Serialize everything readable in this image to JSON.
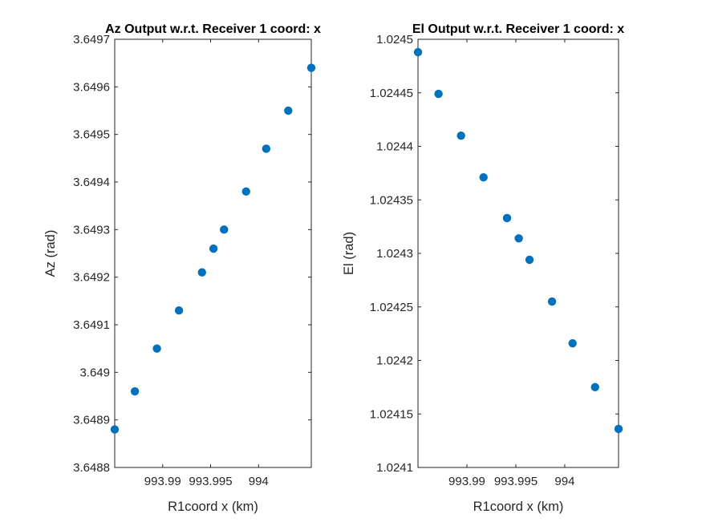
{
  "chart_data": [
    {
      "type": "scatter",
      "title": "Az Output w.r.t. Receiver 1 coord: x",
      "xlabel": "R1coord x (km)",
      "ylabel": "Az (rad)",
      "xlim": [
        993.985,
        994.0055
      ],
      "ylim": [
        3.6488,
        3.6497
      ],
      "x_ticks": [
        993.99,
        993.995,
        994
      ],
      "x_tick_labels": [
        "993.99",
        "993.995",
        "994"
      ],
      "y_ticks": [
        3.6488,
        3.6489,
        3.649,
        3.6491,
        3.6492,
        3.6493,
        3.6494,
        3.6495,
        3.6496,
        3.6497
      ],
      "y_tick_labels": [
        "3.6488",
        "3.6489",
        "3.649",
        "3.6491",
        "3.6492",
        "3.6493",
        "3.6494",
        "3.6495",
        "3.6496",
        "3.6497"
      ],
      "grid": false,
      "marker_color": "#0072BD",
      "x": [
        993.985,
        993.9871,
        993.9894,
        993.9917,
        993.9941,
        993.9953,
        993.9964,
        993.9987,
        994.0008,
        994.0031,
        994.0055
      ],
      "y": [
        3.64888,
        3.64896,
        3.64905,
        3.64913,
        3.64921,
        3.64926,
        3.6493,
        3.64938,
        3.64947,
        3.64955,
        3.64964
      ]
    },
    {
      "type": "scatter",
      "title": "El Output w.r.t. Receiver 1 coord: x",
      "xlabel": "R1coord x (km)",
      "ylabel": "El (rad)",
      "xlim": [
        993.985,
        994.0055
      ],
      "ylim": [
        1.0241,
        1.0245
      ],
      "x_ticks": [
        993.99,
        993.995,
        994
      ],
      "x_tick_labels": [
        "993.99",
        "993.995",
        "994"
      ],
      "y_ticks": [
        1.0241,
        1.02415,
        1.0242,
        1.02425,
        1.0243,
        1.02435,
        1.0244,
        1.02445,
        1.0245
      ],
      "y_tick_labels": [
        "1.0241",
        "1.02415",
        "1.0242",
        "1.02425",
        "1.0243",
        "1.02435",
        "1.0244",
        "1.02445",
        "1.0245"
      ],
      "grid": false,
      "marker_color": "#0072BD",
      "x": [
        993.985,
        993.9871,
        993.9894,
        993.9917,
        993.9941,
        993.9953,
        993.9964,
        993.9987,
        994.0008,
        994.0031,
        994.0055
      ],
      "y": [
        1.024488,
        1.024449,
        1.02441,
        1.024371,
        1.024333,
        1.024314,
        1.024294,
        1.024255,
        1.024216,
        1.024175,
        1.024136
      ]
    }
  ]
}
